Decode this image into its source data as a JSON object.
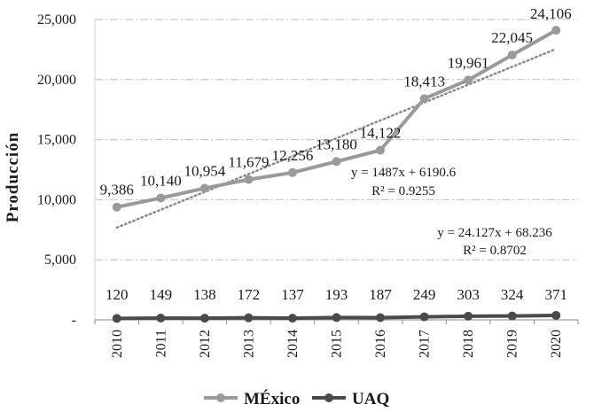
{
  "chart_data": {
    "type": "line",
    "title": "",
    "xlabel": "",
    "ylabel": "Producción",
    "ylim": [
      0,
      25000
    ],
    "y_ticks": [
      0,
      5000,
      10000,
      15000,
      20000,
      25000
    ],
    "y_tick_labels": [
      "-",
      "5,000",
      "10,000",
      "15,000",
      "20,000",
      "25,000"
    ],
    "x": [
      "2010",
      "2011",
      "2012",
      "2013",
      "2014",
      "2015",
      "2016",
      "2017",
      "2018",
      "2019",
      "2020"
    ],
    "grid": "horizontal dash-dot",
    "legend_position": "bottom",
    "series": [
      {
        "name": "MÉxico",
        "color": "#9a9a9a",
        "values": [
          9386,
          10140,
          10954,
          11679,
          12256,
          13180,
          14122,
          18413,
          19961,
          22045,
          24106
        ],
        "labels": [
          "9,386",
          "10,140",
          "10,954",
          "11,679",
          "12,256",
          "13,180",
          "14,122",
          "18,413",
          "19,961",
          "22,045",
          "24,106"
        ],
        "trendline": {
          "slope": 1487,
          "intercept": 6190.6,
          "equation": "y = 1487x + 6190.6",
          "r2": "R² = 0.9255"
        }
      },
      {
        "name": "UAQ",
        "color": "#4a4a4a",
        "values": [
          120,
          149,
          138,
          172,
          137,
          193,
          187,
          249,
          303,
          324,
          371
        ],
        "labels": [
          "120",
          "149",
          "138",
          "172",
          "137",
          "193",
          "187",
          "249",
          "303",
          "324",
          "371"
        ],
        "trendline": {
          "slope": 24.127,
          "intercept": 68.236,
          "equation": "y = 24.127x + 68.236",
          "r2": "R² = 0.8702"
        }
      }
    ]
  }
}
